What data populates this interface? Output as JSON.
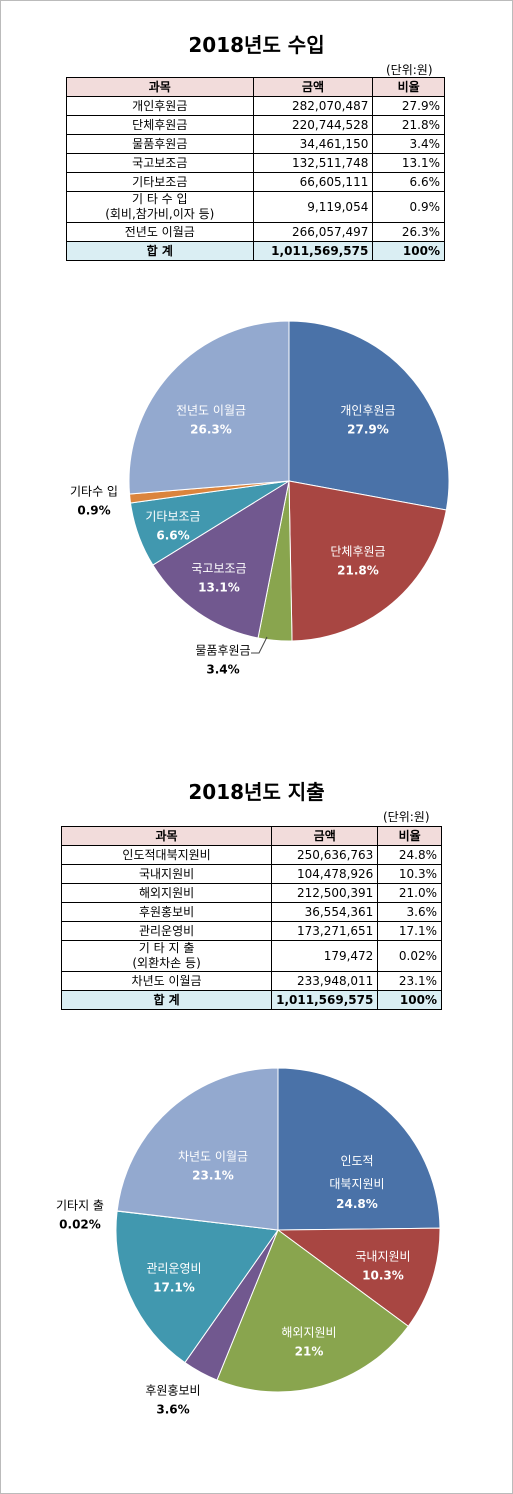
{
  "income": {
    "title": "2018년도 수입",
    "unit": "(단위:원)",
    "table": {
      "header": [
        "과목",
        "금액",
        "비율"
      ],
      "rows": [
        [
          "개인후원금",
          "282,070,487",
          "27.9%"
        ],
        [
          "단체후원금",
          "220,744,528",
          "21.8%"
        ],
        [
          "물품후원금",
          "34,461,150",
          "3.4%"
        ],
        [
          "국고보조금",
          "132,511,748",
          "13.1%"
        ],
        [
          "기타보조금",
          "66,605,111",
          "6.6%"
        ],
        [
          "기 타 수 입\n(회비,참가비,이자 등)",
          "9,119,054",
          "0.9%"
        ],
        [
          "전년도 이월금",
          "266,057,497",
          "26.3%"
        ]
      ],
      "total": [
        "합 계",
        "1,011,569,575",
        "100%"
      ]
    }
  },
  "expense": {
    "title": "2018년도 지출",
    "unit": "(단위:원)",
    "table": {
      "header": [
        "과목",
        "금액",
        "비율"
      ],
      "rows": [
        [
          "인도적대북지원비",
          "250,636,763",
          "24.8%"
        ],
        [
          "국내지원비",
          "104,478,926",
          "10.3%"
        ],
        [
          "해외지원비",
          "212,500,391",
          "21.0%"
        ],
        [
          "후원홍보비",
          "36,554,361",
          "3.6%"
        ],
        [
          "관리운영비",
          "173,271,651",
          "17.1%"
        ],
        [
          "기 타 지 출\n(외환차손 등)",
          "179,472",
          "0.02%"
        ],
        [
          "차년도 이월금",
          "233,948,011",
          "23.1%"
        ]
      ],
      "total": [
        "합 계",
        "1,011,569,575",
        "100%"
      ]
    }
  },
  "chart_data": [
    {
      "type": "pie",
      "categories": [
        "개인후원금",
        "단체후원금",
        "물품후원금",
        "국고보조금",
        "기타보조금",
        "기타수 입",
        "전년도 이월금"
      ],
      "values": [
        27.9,
        21.8,
        3.4,
        13.1,
        6.6,
        0.9,
        26.3
      ],
      "value_labels": [
        "27.9%",
        "21.8%",
        "3.4%",
        "13.1%",
        "6.6%",
        "0.9%",
        "26.3%"
      ],
      "colors": [
        "#4a72a8",
        "#a84642",
        "#89a54e",
        "#71588f",
        "#4198af",
        "#db843d",
        "#93a9cf"
      ]
    },
    {
      "type": "pie",
      "categories": [
        "인도적\n대북지원비",
        "국내지원비",
        "해외지원비",
        "후원홍보비",
        "관리운영비",
        "기타지 출",
        "차년도 이월금"
      ],
      "values": [
        24.8,
        10.3,
        21,
        3.6,
        17.1,
        0.02,
        23.1
      ],
      "value_labels": [
        "24.8%",
        "10.3%",
        "21%",
        "3.6%",
        "17.1%",
        "0.02%",
        "23.1%"
      ],
      "colors": [
        "#4a72a8",
        "#a84642",
        "#89a54e",
        "#71588f",
        "#4198af",
        "#db843d",
        "#93a9cf"
      ]
    }
  ]
}
